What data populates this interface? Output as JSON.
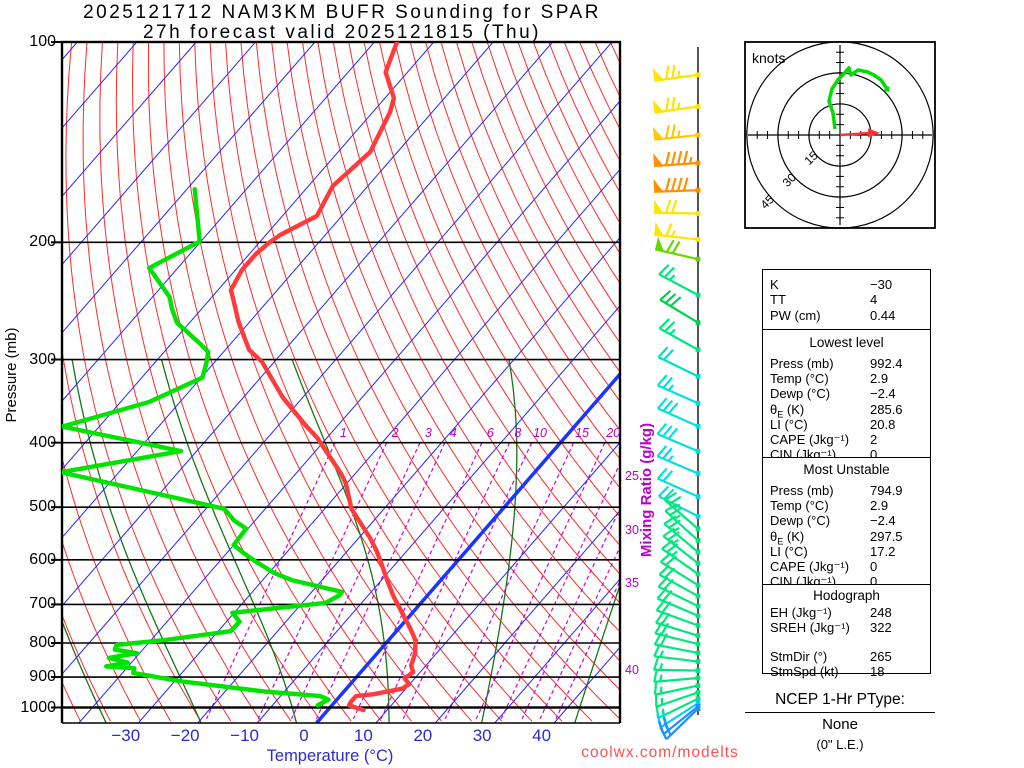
{
  "title": {
    "line1": "2025121712 NAM3KM BUFR Sounding for SPAR",
    "line2": "27h forecast valid 2025121815 (Thu)"
  },
  "watermark": "coolwx.com/modelts",
  "axes": {
    "pressure_title": "Pressure (mb)",
    "temperature_title": "Temperature (°C)",
    "mixing_title": "Mixing Ratio (g/kg)",
    "pressure_ticks": [
      100,
      200,
      300,
      400,
      500,
      600,
      700,
      800,
      900,
      1000
    ],
    "temp_ticks": [
      -30,
      -20,
      -10,
      0,
      10,
      20,
      30,
      40
    ],
    "mixing_top_ticks": [
      1,
      2,
      3,
      4,
      6,
      8,
      10,
      15,
      20
    ],
    "mixing_right_ticks": [
      25,
      30,
      35,
      40
    ]
  },
  "hodograph": {
    "unit_label": "knots",
    "ring_labels": [
      15,
      30,
      45
    ],
    "trace_kt": [
      [
        -2.4,
        2.9
      ],
      [
        -3.4,
        10.6
      ],
      [
        -5.3,
        16.4
      ],
      [
        -3.9,
        22.2
      ],
      [
        -1.0,
        26.6
      ],
      [
        1.9,
        29.5
      ],
      [
        4.3,
        32.4
      ],
      [
        5.3,
        29.0
      ],
      [
        8.7,
        31.4
      ],
      [
        13.5,
        30.4
      ],
      [
        16.4,
        29.0
      ],
      [
        19.8,
        26.6
      ],
      [
        22.7,
        22.2
      ]
    ],
    "storm_vector_kt": [
      17.4,
      1.0
    ]
  },
  "chart_data": {
    "type": "line",
    "subtype": "skewt-log-p-sounding",
    "title": "2025121712 NAM3KM BUFR Sounding for SPAR",
    "xlabel": "Temperature (°C)",
    "ylabel": "Pressure (mb)",
    "xlim": [
      -45,
      48
    ],
    "ylim": [
      1000,
      100
    ],
    "series": [
      {
        "name": "temperature_C_vs_mb",
        "points": [
          [
            100,
            -86.2
          ],
          [
            111,
            -83.7
          ],
          [
            121.4,
            -78.5
          ],
          [
            127.4,
            -77.1
          ],
          [
            146.3,
            -74.6
          ],
          [
            164.6,
            -75.9
          ],
          [
            182.6,
            -74.2
          ],
          [
            195,
            -77.6
          ],
          [
            200,
            -78.3
          ],
          [
            208.3,
            -78.9
          ],
          [
            220.1,
            -78.9
          ],
          [
            236,
            -77.8
          ],
          [
            244.3,
            -75.9
          ],
          [
            263.3,
            -71.9
          ],
          [
            290.1,
            -66
          ],
          [
            302.3,
            -62.1
          ],
          [
            341.9,
            -53.4
          ],
          [
            377.3,
            -45.3
          ],
          [
            393.6,
            -41.6
          ],
          [
            411.9,
            -38.2
          ],
          [
            444.6,
            -32.5
          ],
          [
            461.7,
            -30
          ],
          [
            502.9,
            -25.5
          ],
          [
            555.3,
            -18.2
          ],
          [
            580.6,
            -15.2
          ],
          [
            602.9,
            -12.9
          ],
          [
            649.4,
            -8.5
          ],
          [
            680.6,
            -5.6
          ],
          [
            759.1,
            1.8
          ],
          [
            792,
            4.5
          ],
          [
            828.9,
            6.4
          ],
          [
            864.6,
            7.5
          ],
          [
            884.3,
            8.8
          ],
          [
            904.4,
            8.3
          ],
          [
            922,
            9.9
          ],
          [
            936.9,
            9.4
          ],
          [
            955.2,
            5.3
          ],
          [
            961.3,
            2.7
          ],
          [
            979.9,
            2.7
          ],
          [
            992.4,
            2.9
          ],
          [
            1009,
            6
          ]
        ]
      },
      {
        "name": "dewpoint_C_vs_mb",
        "points": [
          [
            166.4,
            -98.7
          ],
          [
            199.4,
            -90.2
          ],
          [
            218.6,
            -94.8
          ],
          [
            241.7,
            -87.1
          ],
          [
            251.3,
            -85.1
          ],
          [
            264.2,
            -82.1
          ],
          [
            283.3,
            -75.4
          ],
          [
            292.1,
            -72.6
          ],
          [
            303.3,
            -71.3
          ],
          [
            319.4,
            -69.8
          ],
          [
            347.5,
            -75.2
          ],
          [
            378.4,
            -86.2
          ],
          [
            411.9,
            -62.6
          ],
          [
            443.1,
            -79.8
          ],
          [
            502.9,
            -46.9
          ],
          [
            523.8,
            -43.5
          ],
          [
            538.6,
            -40.3
          ],
          [
            570,
            -40
          ],
          [
            586.4,
            -37.1
          ],
          [
            605,
            -33.6
          ],
          [
            628.3,
            -29
          ],
          [
            643.6,
            -25.1
          ],
          [
            670.4,
            -14.9
          ],
          [
            677.4,
            -14.8
          ],
          [
            696.3,
            -16.1
          ],
          [
            720.6,
            -30.3
          ],
          [
            743,
            -27.8
          ],
          [
            768.1,
            -27.9
          ],
          [
            792,
            -37.7
          ],
          [
            805.2,
            -45.1
          ],
          [
            818.6,
            -44.7
          ],
          [
            828.9,
            -40.4
          ],
          [
            842.4,
            -44.5
          ],
          [
            856.1,
            -40.6
          ],
          [
            867.3,
            -43.7
          ],
          [
            872.9,
            -38.7
          ],
          [
            887.1,
            -38.2
          ],
          [
            913.1,
            -29.1
          ],
          [
            946.1,
            -13.4
          ],
          [
            961.3,
            -3.3
          ],
          [
            973.4,
            -1.4
          ],
          [
            980,
            -1.8
          ],
          [
            992.4,
            -2.4
          ]
        ]
      }
    ],
    "wind_barbs": [
      {
        "p": 112,
        "dir": 262,
        "spd": 75,
        "c": "#ffe400"
      },
      {
        "p": 125,
        "dir": 262,
        "spd": 75,
        "c": "#ffe400"
      },
      {
        "p": 138,
        "dir": 264,
        "spd": 75,
        "c": "#ffc800"
      },
      {
        "p": 152,
        "dir": 266,
        "spd": 95,
        "c": "#ff9000"
      },
      {
        "p": 167,
        "dir": 268,
        "spd": 90,
        "c": "#ff9000"
      },
      {
        "p": 181,
        "dir": 271,
        "spd": 70,
        "c": "#ffe400"
      },
      {
        "p": 198,
        "dir": 276,
        "spd": 65,
        "c": "#ffe400"
      },
      {
        "p": 212,
        "dir": 283,
        "spd": 70,
        "c": "#66d800"
      },
      {
        "p": 240,
        "dir": 298,
        "spd": 25,
        "c": "#00e87d"
      },
      {
        "p": 264,
        "dir": 301,
        "spd": 30,
        "c": "#00d050"
      },
      {
        "p": 290,
        "dir": 299,
        "spd": 25,
        "c": "#00e87d"
      },
      {
        "p": 318,
        "dir": 296,
        "spd": 20,
        "c": "#00e0c8"
      },
      {
        "p": 349,
        "dir": 294,
        "spd": 25,
        "c": "#00e0e0"
      },
      {
        "p": 378,
        "dir": 294,
        "spd": 30,
        "c": "#00e0e0"
      },
      {
        "p": 412,
        "dir": 293,
        "spd": 30,
        "c": "#00e0e0"
      },
      {
        "p": 445,
        "dir": 293,
        "spd": 25,
        "c": "#00e0e0"
      },
      {
        "p": 482,
        "dir": 294,
        "spd": 20,
        "c": "#00e0e0"
      },
      {
        "p": 516,
        "dir": 297,
        "spd": 20,
        "c": "#00e0e0"
      },
      {
        "p": 539,
        "dir": 311,
        "spd": 25,
        "c": "#00e87d"
      },
      {
        "p": 561,
        "dir": 312,
        "spd": 25,
        "c": "#00e87d"
      },
      {
        "p": 584,
        "dir": 310,
        "spd": 25,
        "c": "#00e87d"
      },
      {
        "p": 607,
        "dir": 308,
        "spd": 25,
        "c": "#00e87d"
      },
      {
        "p": 630,
        "dir": 305,
        "spd": 25,
        "c": "#00e87d"
      },
      {
        "p": 655,
        "dir": 302,
        "spd": 20,
        "c": "#00e87d"
      },
      {
        "p": 680,
        "dir": 299,
        "spd": 20,
        "c": "#00e87d"
      },
      {
        "p": 704,
        "dir": 296,
        "spd": 20,
        "c": "#00e87d"
      },
      {
        "p": 728,
        "dir": 293,
        "spd": 20,
        "c": "#00e87d"
      },
      {
        "p": 753,
        "dir": 290,
        "spd": 20,
        "c": "#00e87d"
      },
      {
        "p": 780,
        "dir": 287,
        "spd": 20,
        "c": "#00e87d"
      },
      {
        "p": 803,
        "dir": 284,
        "spd": 20,
        "c": "#00e87d"
      },
      {
        "p": 828,
        "dir": 281,
        "spd": 20,
        "c": "#00e87d"
      },
      {
        "p": 853,
        "dir": 277,
        "spd": 18,
        "c": "#00e87d"
      },
      {
        "p": 880,
        "dir": 271,
        "spd": 18,
        "c": "#00e87d"
      },
      {
        "p": 903,
        "dir": 265,
        "spd": 18,
        "c": "#00e87d"
      },
      {
        "p": 927,
        "dir": 258,
        "spd": 18,
        "c": "#00e87d"
      },
      {
        "p": 949,
        "dir": 251,
        "spd": 18,
        "c": "#00e87d"
      },
      {
        "p": 970,
        "dir": 244,
        "spd": 18,
        "c": "#00e87d"
      },
      {
        "p": 985,
        "dir": 237,
        "spd": 20,
        "c": "#00cfff"
      },
      {
        "p": 996,
        "dir": 231,
        "spd": 22,
        "c": "#1e90ff"
      },
      {
        "p": 1004,
        "dir": 226,
        "spd": 22,
        "c": "#1e90ff"
      }
    ]
  },
  "tables": {
    "summary": {
      "rows": [
        {
          "label": "K",
          "value": "−30"
        },
        {
          "label": "TT",
          "value": "4"
        },
        {
          "label": "PW (cm)",
          "value": "0.44"
        }
      ]
    },
    "lowest": {
      "title": "Lowest level",
      "rows": [
        {
          "label": "Press (mb)",
          "value": "992.4"
        },
        {
          "label": "Temp (°C)",
          "value": "2.9"
        },
        {
          "label": "Dewp (°C)",
          "value": "−2.4"
        },
        {
          "label": "θe (K)",
          "value": "285.6"
        },
        {
          "label": "LI (°C)",
          "value": "20.8"
        },
        {
          "label": "CAPE (Jkg⁻¹)",
          "value": "2"
        },
        {
          "label": "CIN (Jkg⁻¹)",
          "value": "0"
        }
      ]
    },
    "most_unstable": {
      "title": "Most Unstable",
      "rows": [
        {
          "label": "Press (mb)",
          "value": "794.9"
        },
        {
          "label": "Temp (°C)",
          "value": "2.9"
        },
        {
          "label": "Dewp (°C)",
          "value": "−2.4"
        },
        {
          "label": "θe (K)",
          "value": "297.5"
        },
        {
          "label": "LI (°C)",
          "value": "17.2"
        },
        {
          "label": "CAPE (Jkg⁻¹)",
          "value": "0"
        },
        {
          "label": "CIN (Jkg⁻¹)",
          "value": "0"
        }
      ]
    },
    "hodograph_stats": {
      "title": "Hodograph",
      "rows": [
        {
          "label": "EH (Jkg⁻¹)",
          "value": "248"
        },
        {
          "label": "SREH (Jkg⁻¹)",
          "value": "322"
        },
        {
          "label": "",
          "value": ""
        },
        {
          "label": "StmDir (°)",
          "value": "265"
        },
        {
          "label": "StmSpd (kt)",
          "value": "18"
        }
      ]
    }
  },
  "ptype": {
    "heading": "NCEP 1-Hr PType:",
    "value": "None",
    "note": "(0\" L.E.)"
  },
  "colors": {
    "isotherm": "#2424ff",
    "isotherm_zero": "#1a35ff",
    "dry_adiabat": "#ff2a2a",
    "moist_adiabat": "#157515",
    "mixing_ratio": "#d400d4",
    "mixing_text": "#bb00cc",
    "temperature_curve": "#ff3b3b",
    "dewpoint_curve": "#00e300",
    "axis_text_blue": "#2b2bd0",
    "watermark_red": "#ff5050",
    "hodo_trace": "#00dd00",
    "storm_arrow": "#ff3333",
    "staff": "#555555"
  }
}
